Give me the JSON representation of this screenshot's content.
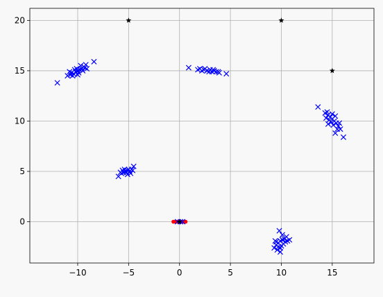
{
  "chart_data": {
    "type": "scatter",
    "title": "",
    "xlabel": "",
    "ylabel": "",
    "xlim": [
      -14.7,
      19.1
    ],
    "ylim": [
      -4.1,
      21.2
    ],
    "grid": true,
    "x_ticks": [
      -10,
      -5,
      0,
      5,
      10,
      15
    ],
    "y_ticks": [
      0,
      5,
      10,
      15,
      20
    ],
    "colors": {
      "background": "#f8f8f8",
      "axes_face": "#f8f8f8",
      "grid": "#b0b0b0",
      "points": "#0000ff",
      "centers": "#000000",
      "origin_points": "#ff0000"
    },
    "series": [
      {
        "marker": "x",
        "color": "#0000ff",
        "clusters": [
          {
            "center": [
              -10,
              15
            ],
            "points": [
              [
                -12.0,
                13.8
              ],
              [
                -11.0,
                14.5
              ],
              [
                -10.7,
                14.6
              ],
              [
                -10.6,
                14.8
              ],
              [
                -10.4,
                14.7
              ],
              [
                -10.2,
                14.9
              ],
              [
                -10.0,
                15.0
              ],
              [
                -9.8,
                15.1
              ],
              [
                -9.6,
                15.2
              ],
              [
                -9.4,
                15.4
              ],
              [
                -9.2,
                15.6
              ],
              [
                -10.3,
                15.1
              ],
              [
                -9.9,
                14.8
              ],
              [
                -10.8,
                14.9
              ],
              [
                -9.5,
                15.0
              ],
              [
                -9.7,
                15.5
              ],
              [
                -10.1,
                15.2
              ],
              [
                -9.3,
                15.3
              ],
              [
                -8.4,
                15.9
              ],
              [
                -9.1,
                15.2
              ],
              [
                -10.5,
                14.5
              ],
              [
                -10.0,
                14.6
              ]
            ]
          },
          {
            "center": [
              3,
              15
            ],
            "points": [
              [
                0.9,
                15.3
              ],
              [
                1.8,
                15.1
              ],
              [
                2.2,
                15.0
              ],
              [
                2.5,
                15.2
              ],
              [
                2.7,
                15.0
              ],
              [
                3.0,
                15.1
              ],
              [
                3.2,
                14.9
              ],
              [
                3.4,
                15.0
              ],
              [
                3.6,
                14.9
              ],
              [
                3.9,
                14.8
              ],
              [
                4.6,
                14.7
              ],
              [
                2.9,
                14.9
              ],
              [
                2.4,
                15.1
              ],
              [
                3.3,
                15.1
              ],
              [
                3.8,
                14.9
              ],
              [
                2.0,
                15.2
              ]
            ]
          },
          {
            "center": [
              -5,
              5
            ],
            "points": [
              [
                -6.0,
                4.5
              ],
              [
                -5.7,
                4.8
              ],
              [
                -5.5,
                4.9
              ],
              [
                -5.3,
                5.0
              ],
              [
                -5.1,
                5.1
              ],
              [
                -4.9,
                5.0
              ],
              [
                -4.7,
                5.2
              ],
              [
                -4.5,
                5.5
              ],
              [
                -5.6,
                5.1
              ],
              [
                -5.2,
                4.9
              ],
              [
                -4.8,
                4.8
              ],
              [
                -5.0,
                5.2
              ],
              [
                -5.4,
                5.2
              ],
              [
                -4.6,
                5.1
              ],
              [
                -5.8,
                4.9
              ],
              [
                -5.1,
                4.7
              ]
            ]
          },
          {
            "center": [
              15,
              10
            ],
            "points": [
              [
                13.6,
                11.4
              ],
              [
                14.3,
                10.8
              ],
              [
                14.6,
                10.6
              ],
              [
                14.8,
                10.4
              ],
              [
                15.0,
                10.2
              ],
              [
                15.2,
                10.0
              ],
              [
                15.4,
                9.8
              ],
              [
                15.6,
                9.5
              ],
              [
                15.8,
                9.2
              ],
              [
                16.1,
                8.4
              ],
              [
                14.4,
                10.3
              ],
              [
                14.9,
                9.9
              ],
              [
                15.3,
                10.5
              ],
              [
                15.1,
                9.6
              ],
              [
                14.7,
                10.1
              ],
              [
                15.5,
                9.2
              ],
              [
                15.3,
                8.8
              ],
              [
                14.5,
                10.9
              ],
              [
                15.7,
                9.8
              ],
              [
                15.0,
                10.7
              ],
              [
                14.6,
                9.7
              ]
            ]
          },
          {
            "center": [
              10,
              -2
            ],
            "points": [
              [
                9.3,
                -2.6
              ],
              [
                9.5,
                -2.3
              ],
              [
                9.7,
                -2.1
              ],
              [
                9.9,
                -1.9
              ],
              [
                10.1,
                -1.8
              ],
              [
                10.3,
                -1.7
              ],
              [
                10.5,
                -1.5
              ],
              [
                10.8,
                -1.8
              ],
              [
                9.8,
                -0.9
              ],
              [
                9.6,
                -2.8
              ],
              [
                9.9,
                -3.0
              ],
              [
                10.0,
                -2.4
              ],
              [
                10.2,
                -2.2
              ],
              [
                9.4,
                -1.9
              ],
              [
                10.4,
                -2.0
              ],
              [
                9.7,
                -2.5
              ],
              [
                10.1,
                -1.3
              ],
              [
                9.5,
                -2.0
              ],
              [
                10.6,
                -1.9
              ],
              [
                9.9,
                -2.6
              ]
            ]
          },
          {
            "center": [
              0,
              0
            ],
            "points": [
              [
                -0.2,
                0.0
              ],
              [
                0.1,
                0.0
              ],
              [
                0.3,
                0.0
              ]
            ]
          }
        ]
      },
      {
        "marker": "star",
        "color": "#000000",
        "points": [
          [
            -5,
            20
          ],
          [
            10,
            20
          ],
          [
            15,
            15
          ],
          [
            0,
            0
          ]
        ]
      },
      {
        "marker": "dot",
        "color": "#ff0000",
        "points": [
          [
            -0.6,
            0.0
          ],
          [
            -0.4,
            0.0
          ],
          [
            -0.2,
            0.0
          ],
          [
            0.1,
            0.0
          ],
          [
            0.3,
            0.0
          ],
          [
            0.5,
            0.0
          ],
          [
            0.6,
            0.0
          ]
        ]
      }
    ]
  }
}
